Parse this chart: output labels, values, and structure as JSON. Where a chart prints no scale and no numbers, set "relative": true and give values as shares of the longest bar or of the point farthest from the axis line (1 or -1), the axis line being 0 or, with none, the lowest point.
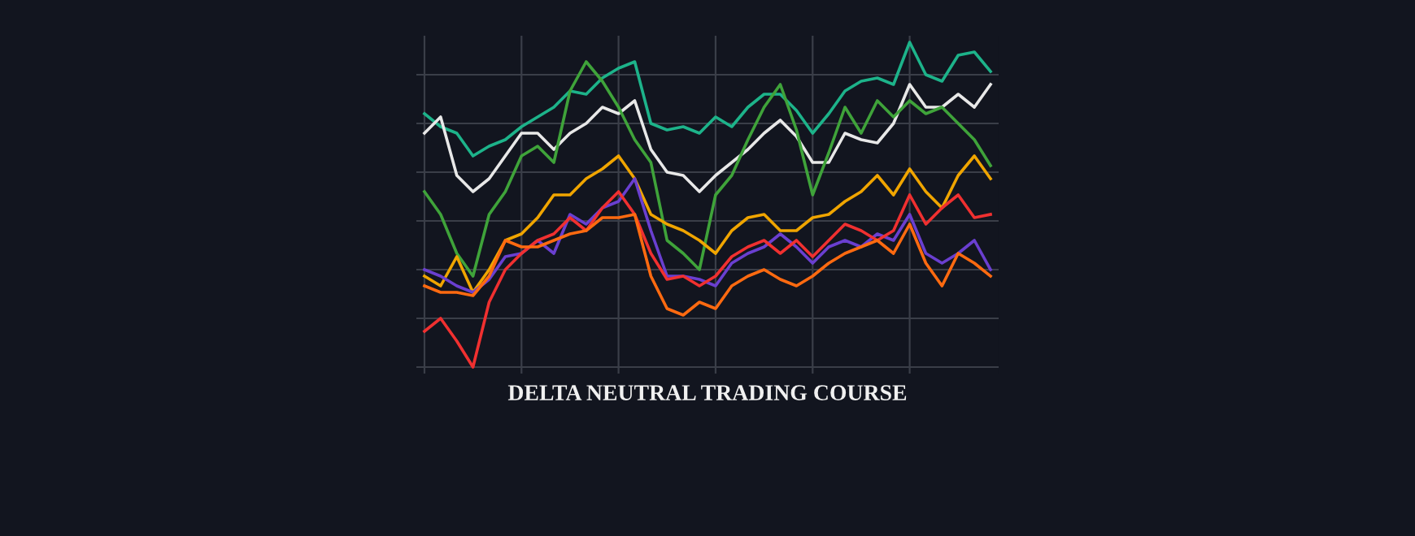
{
  "chart_data": {
    "type": "line",
    "relative": true,
    "grid": true,
    "title": "DELTA NEUTRAL TRADING COURSE",
    "categories": [
      null,
      null,
      null,
      null,
      null,
      null,
      null,
      null,
      null,
      null,
      null,
      null,
      null,
      null,
      null,
      null,
      null,
      null,
      null,
      null,
      null,
      null,
      null,
      null,
      null,
      null,
      null,
      null,
      null,
      null,
      null,
      null,
      null,
      null,
      null,
      null
    ],
    "series": [
      {
        "color": "#1db38a",
        "values": [
          0.78,
          0.74,
          0.72,
          0.65,
          0.68,
          0.7,
          0.74,
          0.77,
          0.8,
          0.85,
          0.84,
          0.89,
          0.92,
          0.94,
          0.75,
          0.73,
          0.74,
          0.72,
          0.77,
          0.74,
          0.8,
          0.84,
          0.84,
          0.79,
          0.72,
          0.78,
          0.85,
          0.88,
          0.89,
          0.87,
          1.0,
          0.9,
          0.88,
          0.96,
          0.97,
          0.91
        ]
      },
      {
        "color": "#e8e8e8",
        "values": [
          0.72,
          0.77,
          0.59,
          0.54,
          0.58,
          0.65,
          0.72,
          0.72,
          0.67,
          0.72,
          0.75,
          0.8,
          0.78,
          0.82,
          0.67,
          0.6,
          0.59,
          0.54,
          0.59,
          0.63,
          0.67,
          0.72,
          0.76,
          0.71,
          0.63,
          0.63,
          0.72,
          0.7,
          0.69,
          0.75,
          0.87,
          0.8,
          0.8,
          0.84,
          0.8,
          0.87
        ]
      },
      {
        "color": "#3fa33a",
        "values": [
          0.54,
          0.47,
          0.35,
          0.28,
          0.47,
          0.54,
          0.65,
          0.68,
          0.63,
          0.85,
          0.94,
          0.88,
          0.8,
          0.7,
          0.63,
          0.39,
          0.35,
          0.3,
          0.53,
          0.59,
          0.7,
          0.8,
          0.87,
          0.73,
          0.53,
          0.66,
          0.8,
          0.72,
          0.82,
          0.77,
          0.82,
          0.78,
          0.8,
          0.75,
          0.7,
          0.62
        ]
      },
      {
        "color": "#f0a500",
        "values": [
          0.28,
          0.25,
          0.34,
          0.23,
          0.3,
          0.39,
          0.41,
          0.46,
          0.53,
          0.53,
          0.58,
          0.61,
          0.65,
          0.58,
          0.47,
          0.44,
          0.42,
          0.39,
          0.35,
          0.42,
          0.46,
          0.47,
          0.42,
          0.42,
          0.46,
          0.47,
          0.51,
          0.54,
          0.59,
          0.53,
          0.61,
          0.54,
          0.49,
          0.59,
          0.65,
          0.58
        ]
      },
      {
        "color": "#6a3fd0",
        "values": [
          0.3,
          0.28,
          0.25,
          0.23,
          0.27,
          0.34,
          0.35,
          0.39,
          0.35,
          0.47,
          0.44,
          0.49,
          0.51,
          0.58,
          0.42,
          0.28,
          0.28,
          0.27,
          0.25,
          0.32,
          0.35,
          0.37,
          0.41,
          0.37,
          0.32,
          0.37,
          0.39,
          0.37,
          0.41,
          0.39,
          0.47,
          0.35,
          0.32,
          0.35,
          0.39,
          0.3
        ]
      },
      {
        "color": "#f03030",
        "values": [
          0.11,
          0.15,
          0.08,
          0.0,
          0.2,
          0.3,
          0.35,
          0.39,
          0.41,
          0.46,
          0.42,
          0.49,
          0.54,
          0.47,
          0.35,
          0.27,
          0.28,
          0.25,
          0.28,
          0.34,
          0.37,
          0.39,
          0.35,
          0.39,
          0.34,
          0.39,
          0.44,
          0.42,
          0.39,
          0.42,
          0.53,
          0.44,
          0.49,
          0.53,
          0.46,
          0.47
        ]
      },
      {
        "color": "#ff6a10",
        "values": [
          0.25,
          0.23,
          0.23,
          0.22,
          0.28,
          0.39,
          0.37,
          0.37,
          0.39,
          0.41,
          0.42,
          0.46,
          0.46,
          0.47,
          0.28,
          0.18,
          0.16,
          0.2,
          0.18,
          0.25,
          0.28,
          0.3,
          0.27,
          0.25,
          0.28,
          0.32,
          0.35,
          0.37,
          0.39,
          0.35,
          0.44,
          0.32,
          0.25,
          0.35,
          0.32,
          0.28
        ]
      }
    ]
  }
}
